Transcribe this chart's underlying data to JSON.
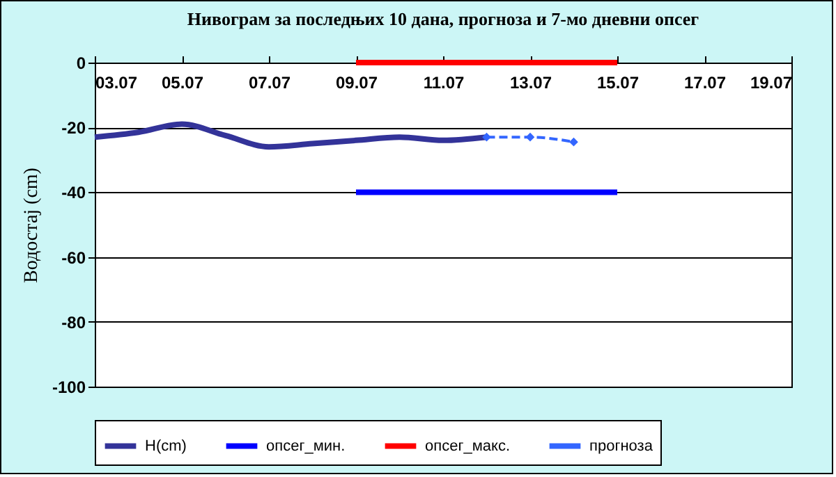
{
  "chart_data": {
    "type": "line",
    "title": "Нивограм за последњих 10 дана, прогноза и 7-мо дневни опсег",
    "ylabel": "Водостај (cm)",
    "x": [
      "--07-03",
      "--07-04",
      "--07-05",
      "--07-06",
      "--07-07",
      "--07-08",
      "--07-09",
      "--07-10",
      "--07-11",
      "--07-12"
    ],
    "series": [
      {
        "name": "H(cm)",
        "color": "#333399",
        "values": [
          -23,
          -21.5,
          -19,
          -22.5,
          -26,
          -25,
          -24,
          -23,
          -24,
          -23
        ]
      },
      {
        "name": "опсег_мин.",
        "color": "#0000ff",
        "x": [
          "--07-09",
          "--07-15"
        ],
        "values": [
          -40,
          -40
        ]
      },
      {
        "name": "опсег_макс.",
        "color": "#ff0000",
        "x": [
          "--07-09",
          "--07-15"
        ],
        "values": [
          0,
          0
        ]
      },
      {
        "name": "прогноза",
        "color": "#3366ff",
        "x": [
          "--07-12",
          "--07-13",
          "--07-14"
        ],
        "values": [
          -23,
          -23,
          -24.5
        ],
        "marker": "diamond",
        "line_style": "dashed"
      }
    ],
    "xlim": [
      "--07-03",
      "--07-19"
    ],
    "xticks": [
      {
        "value": "--07-03",
        "label": "03.07"
      },
      {
        "value": "--07-05",
        "label": "05.07"
      },
      {
        "value": "--07-07",
        "label": "07.07"
      },
      {
        "value": "--07-09",
        "label": "09.07"
      },
      {
        "value": "--07-11",
        "label": "11.07"
      },
      {
        "value": "--07-13",
        "label": "13.07"
      },
      {
        "value": "--07-15",
        "label": "15.07"
      },
      {
        "value": "--07-17",
        "label": "17.07"
      },
      {
        "value": "--07-19",
        "label": "19.07"
      }
    ],
    "ylim": [
      -100,
      0
    ],
    "yticks": [
      -100,
      -80,
      -60,
      -40,
      -20,
      0
    ],
    "grid": "y",
    "legend": "bottom"
  }
}
